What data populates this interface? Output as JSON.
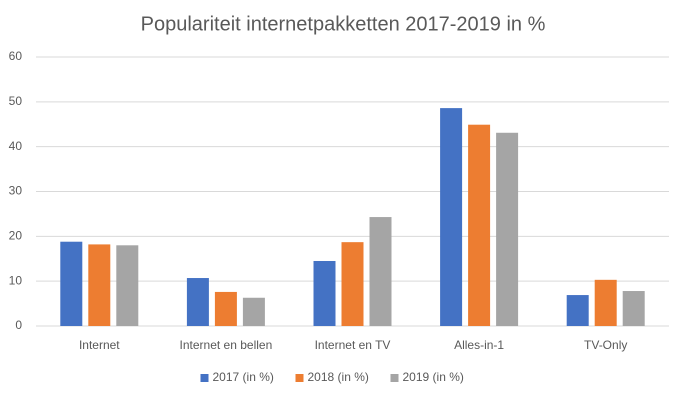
{
  "chart_data": {
    "type": "bar",
    "title": "Populariteit internetpakketten 2017-2019 in %",
    "categories": [
      "Internet",
      "Internet en bellen",
      "Internet en TV",
      "Alles-in-1",
      "TV-Only"
    ],
    "series": [
      {
        "name": "2017 (in %)",
        "color": "#4472c4",
        "values": [
          18.8,
          10.7,
          14.5,
          48.6,
          6.9
        ]
      },
      {
        "name": "2018 (in %)",
        "color": "#ed7d31",
        "values": [
          18.2,
          7.6,
          18.7,
          44.9,
          10.3
        ]
      },
      {
        "name": "2019 (in %)",
        "color": "#a5a5a5",
        "values": [
          18.0,
          6.3,
          24.3,
          43.1,
          7.8
        ]
      }
    ],
    "ylim": [
      0,
      60
    ],
    "yticks": [
      0,
      10,
      20,
      30,
      40,
      50,
      60
    ],
    "grid": true,
    "legend": "bottom"
  }
}
